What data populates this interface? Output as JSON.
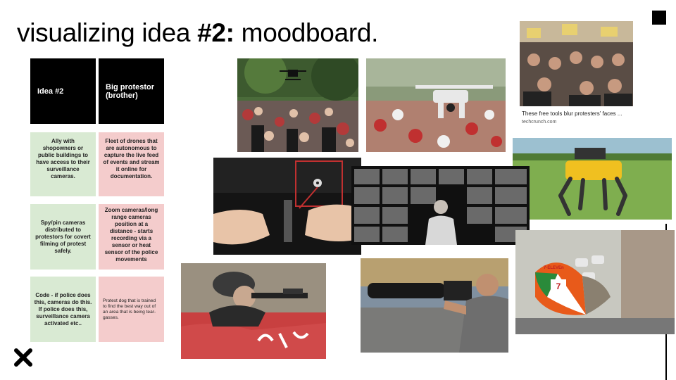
{
  "slide": {
    "title_prefix": "visualizing idea ",
    "title_bold": "#2:",
    "title_suffix": " moodboard."
  },
  "table": {
    "header_left": "Idea #2",
    "header_right": "Big protestor (brother)",
    "row1_left": "Ally with shopowners or public buildings to have access to their surveillance cameras.",
    "row1_right": "Fleet of drones that are autonomous to capture the live feed of events and stream it online for documentation.",
    "row2_left": "Spy/pin cameras distributed to protestors for covert filming of protest safely.",
    "row2_right": "Zoom cameras/long range cameras position at a distance - starts recording via a sensor or heat sensor of the police movements",
    "row3_left": "Code - if police does this, cameras do this. If police does this, surveillance camera activated etc..",
    "row3_right": "Protest dog that is trained to find the best way out of an area that is being tear-gasses."
  },
  "images": {
    "caption_title": "These free tools blur protesters' faces ...",
    "caption_source": "techcrunch.com",
    "umbrella_text": "7-ELEVEn"
  },
  "icons": {
    "corner_square": "square-icon",
    "close": "x-mark-icon"
  },
  "colors": {
    "header_bg": "#000000",
    "green": "#d9ead3",
    "pink": "#f4cccc"
  }
}
